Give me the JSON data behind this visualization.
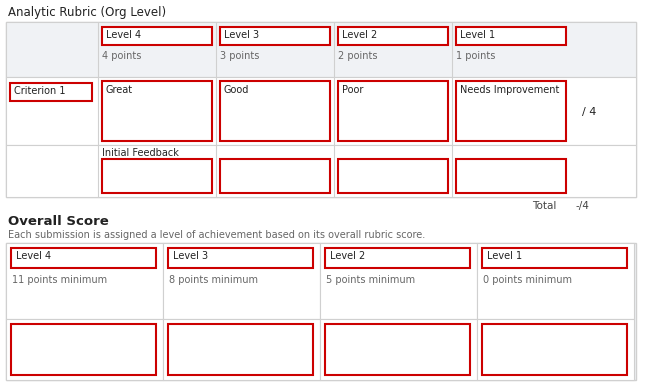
{
  "title": "Analytic Rubric (Org Level)",
  "bg_color": "#ffffff",
  "red": "#cc0000",
  "lt_gray": "#d0d0d0",
  "cell_bg": "#f0f2f5",
  "white": "#ffffff",
  "text_dark": "#222222",
  "text_mid": "#444444",
  "text_light": "#666666",
  "levels_top": [
    "Level 4",
    "Level 3",
    "Level 2",
    "Level 1"
  ],
  "points_top": [
    "4 points",
    "3 points",
    "2 points",
    "1 points"
  ],
  "criterion_label": "Criterion 1",
  "criterion_descriptions": [
    "Great",
    "Good",
    "Poor",
    "Needs Improvement"
  ],
  "score_label": "/ 4",
  "total_label": "Total",
  "total_score": "-/4",
  "initial_feedback_label": "Initial Feedback",
  "overall_title": "Overall Score",
  "overall_subtitle": "Each submission is assigned a level of achievement based on its overall rubric score.",
  "overall_levels": [
    "Level 4",
    "Level 3",
    "Level 2",
    "Level 1"
  ],
  "overall_points": [
    "11 points minimum",
    "8 points minimum",
    "5 points minimum",
    "0 points minimum"
  ],
  "figw": 6.48,
  "figh": 3.88,
  "dpi": 100
}
